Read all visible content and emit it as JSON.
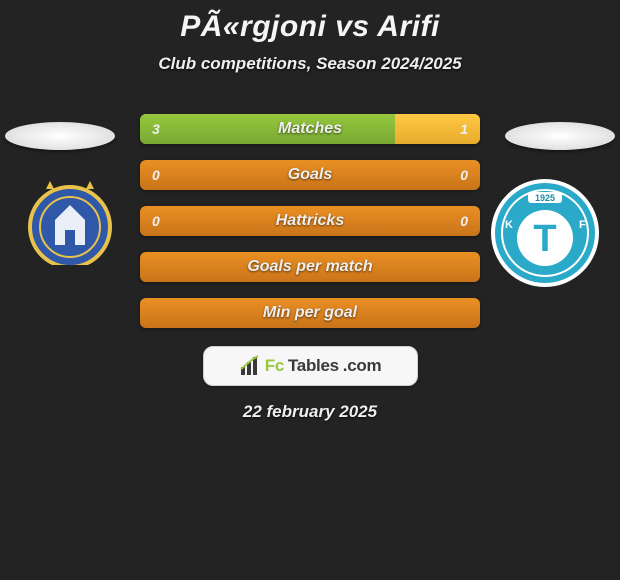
{
  "colors": {
    "bg": "#232323",
    "textLight": "#efefef",
    "titleColor": "#f5f5f5",
    "barBase": "#e98f23",
    "barBaseDark": "#c9741a",
    "fillLeft": "#94c83d",
    "fillLeftDark": "#7aa832",
    "fillRight": "#ffc843",
    "fillRightDark": "#e6ad2c",
    "logoBg": "#f7f7f7",
    "logoBorder": "#d0d0d0",
    "logoFc": "#9ac93f",
    "logoTables": "#3a3a3a",
    "tiranaBlue": "#2f58a8",
    "tiranaGold": "#e8c24a",
    "teutaBlue": "#2aa9c9",
    "teutaDark": "#1a89a5"
  },
  "title": "PÃ«rgjoni vs Arifi",
  "subtitle": "Club competitions, Season 2024/2025",
  "rows": [
    {
      "label": "Matches",
      "left": "3",
      "right": "1",
      "leftPct": 75,
      "rightPct": 25,
      "showValues": true
    },
    {
      "label": "Goals",
      "left": "0",
      "right": "0",
      "leftPct": 0,
      "rightPct": 0,
      "showValues": true
    },
    {
      "label": "Hattricks",
      "left": "0",
      "right": "0",
      "leftPct": 0,
      "rightPct": 0,
      "showValues": true
    },
    {
      "label": "Goals per match",
      "left": "",
      "right": "",
      "leftPct": 0,
      "rightPct": 0,
      "showValues": false
    },
    {
      "label": "Min per goal",
      "left": "",
      "right": "",
      "leftPct": 0,
      "rightPct": 0,
      "showValues": false
    }
  ],
  "logo": {
    "fc": "Fc",
    "tables": "Tables",
    "dotcom": ".com"
  },
  "date": "22 february 2025",
  "clubs": {
    "left": {
      "name": "KF Tirana"
    },
    "right": {
      "name": "KF Teuta"
    }
  }
}
